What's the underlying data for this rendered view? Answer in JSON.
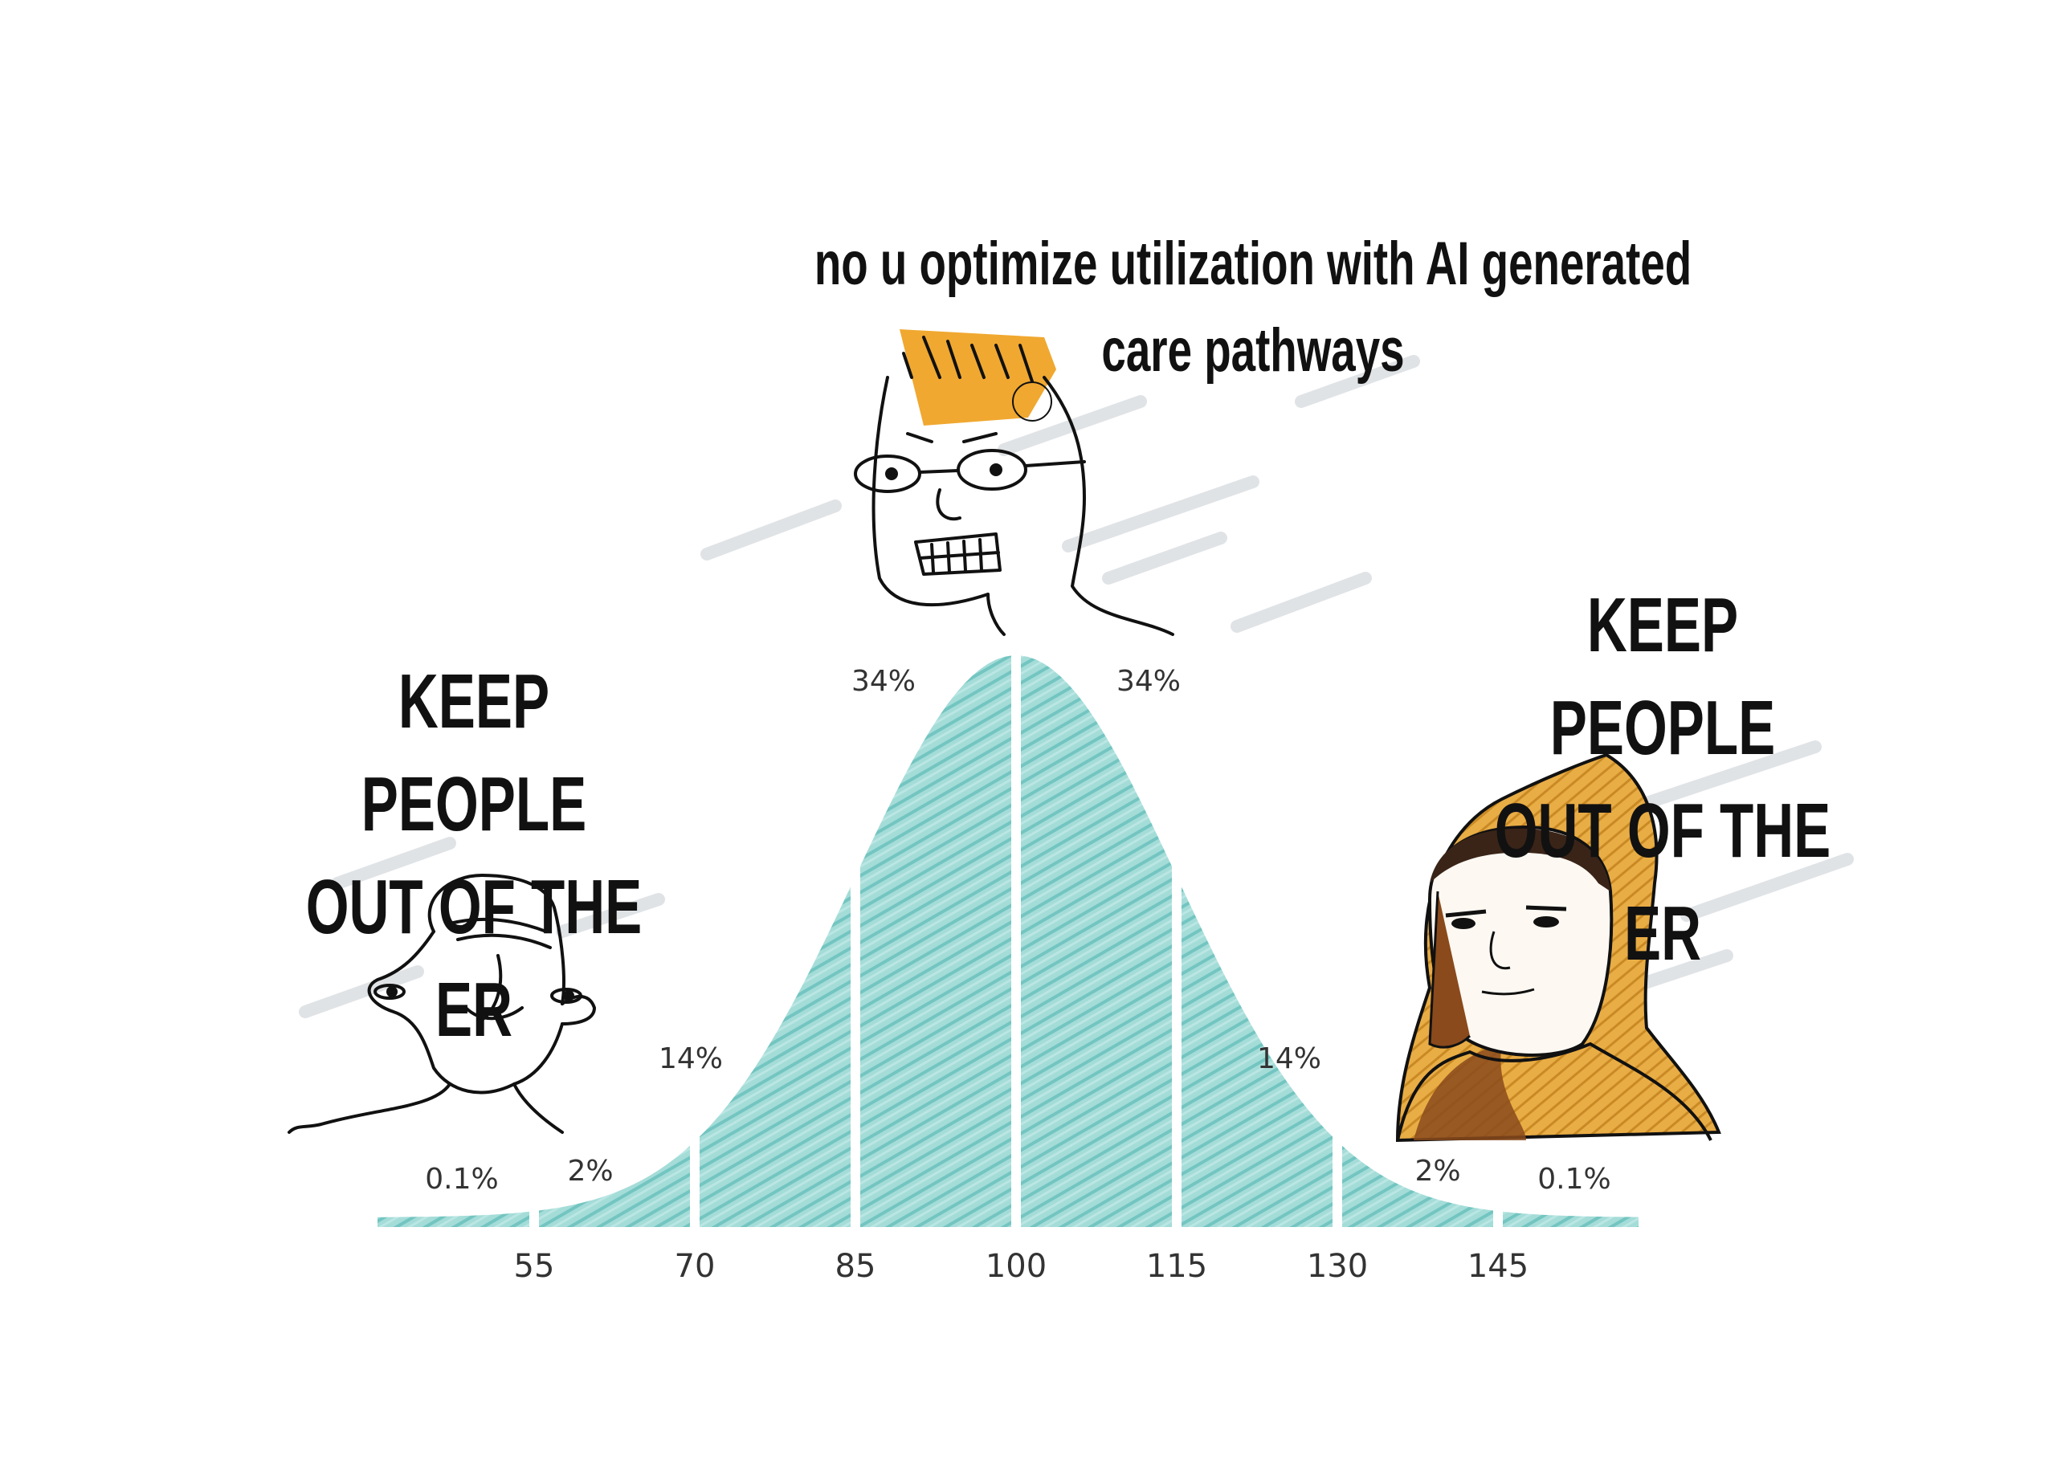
{
  "captions": {
    "top": "no u optimize utilization with AI generated care pathways",
    "left": [
      "KEEP PEOPLE",
      "OUT OF THE ER"
    ],
    "right": [
      "KEEP PEOPLE",
      "OUT OF THE ER"
    ]
  },
  "curve": {
    "fill_color": "#8fd3d0",
    "x_ticks": [
      "55",
      "70",
      "85",
      "100",
      "115",
      "130",
      "145"
    ],
    "segment_labels": [
      "0.1%",
      "2%",
      "14%",
      "34%",
      "34%",
      "14%",
      "2%",
      "0.1%"
    ]
  },
  "characters": {
    "left": "wojak-left-figure",
    "center": "glasses-wojak-figure",
    "right": "hooded-wojak-figure"
  },
  "colors": {
    "text": "#111111",
    "hair": "#f0a830",
    "hood": "#e3a437",
    "hood_shadow": "#8a4a1c"
  }
}
